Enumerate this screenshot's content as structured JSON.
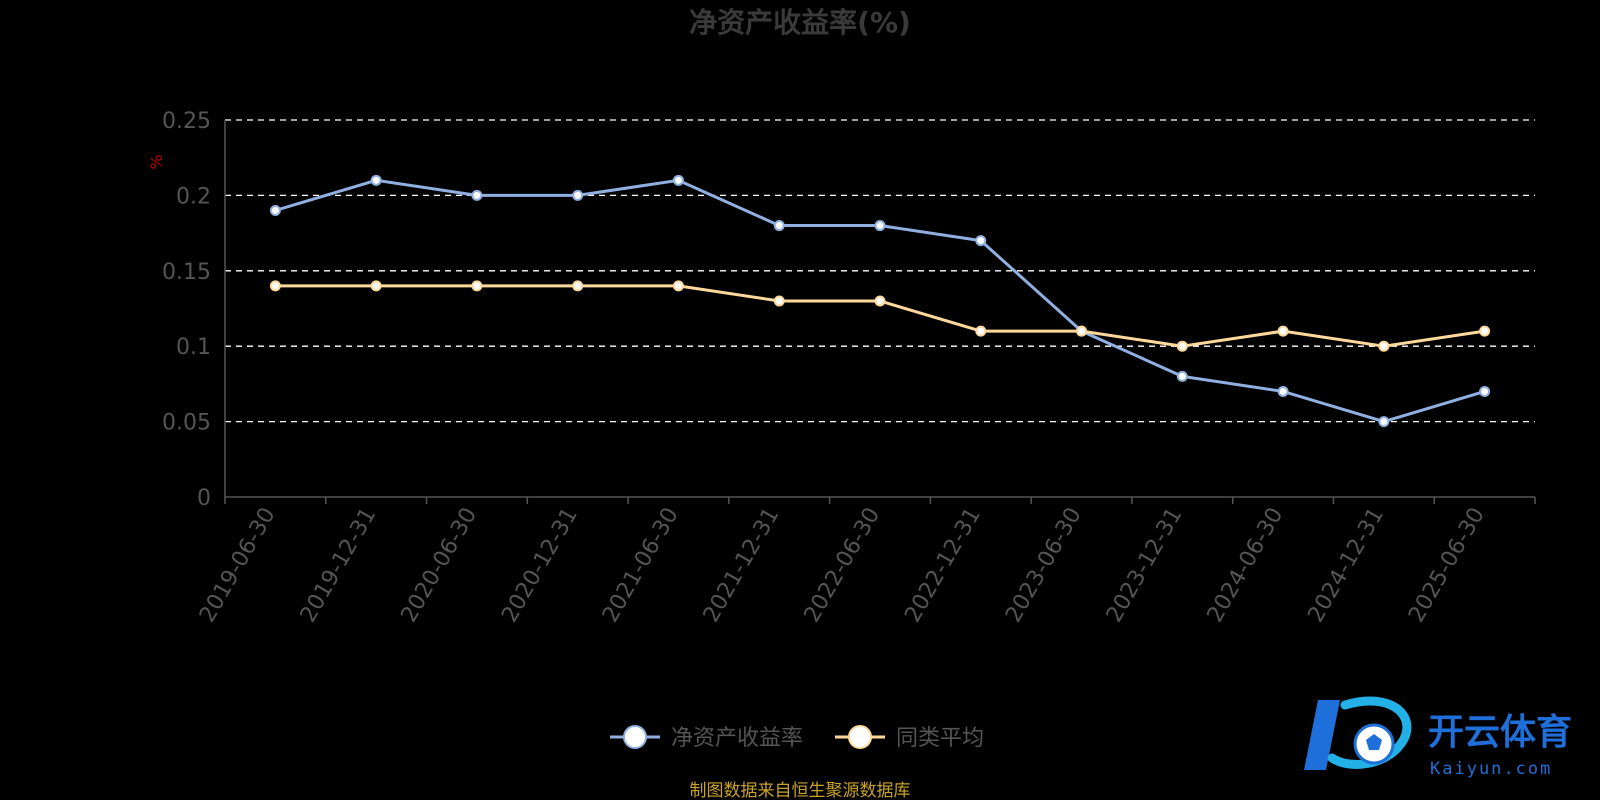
{
  "chart_data": {
    "type": "line",
    "title": "净资产收益率(%)",
    "unit": "%",
    "categories": [
      "2019-06-30",
      "2019-12-31",
      "2020-06-30",
      "2020-12-31",
      "2021-06-30",
      "2021-12-31",
      "2022-06-30",
      "2022-12-31",
      "2023-06-30",
      "2023-12-31",
      "2024-06-30",
      "2024-12-31",
      "2025-06-30"
    ],
    "series": [
      {
        "name": "净资产收益率",
        "color": "#8fb0e0",
        "values": [
          0.19,
          0.21,
          0.2,
          0.2,
          0.21,
          0.18,
          0.18,
          0.17,
          0.11,
          0.08,
          0.07,
          0.05,
          0.07
        ]
      },
      {
        "name": "同类平均",
        "color": "#ffd89b",
        "values": [
          0.14,
          0.14,
          0.14,
          0.14,
          0.14,
          0.13,
          0.13,
          0.11,
          0.11,
          0.1,
          0.11,
          0.1,
          0.11
        ]
      }
    ],
    "ylim": [
      0,
      0.25
    ],
    "yticks": [
      "0",
      "0.05",
      "0.1",
      "0.15",
      "0.2",
      "0.25"
    ],
    "ytick_values": [
      0,
      0.05,
      0.1,
      0.15,
      0.2,
      0.25
    ],
    "grid": true,
    "legend_position": "bottom-center"
  },
  "source_note": "制图数据来自恒生聚源数据库",
  "logo": {
    "name": "开云体育",
    "sub": "Kaiyun.com",
    "mark": "K"
  }
}
